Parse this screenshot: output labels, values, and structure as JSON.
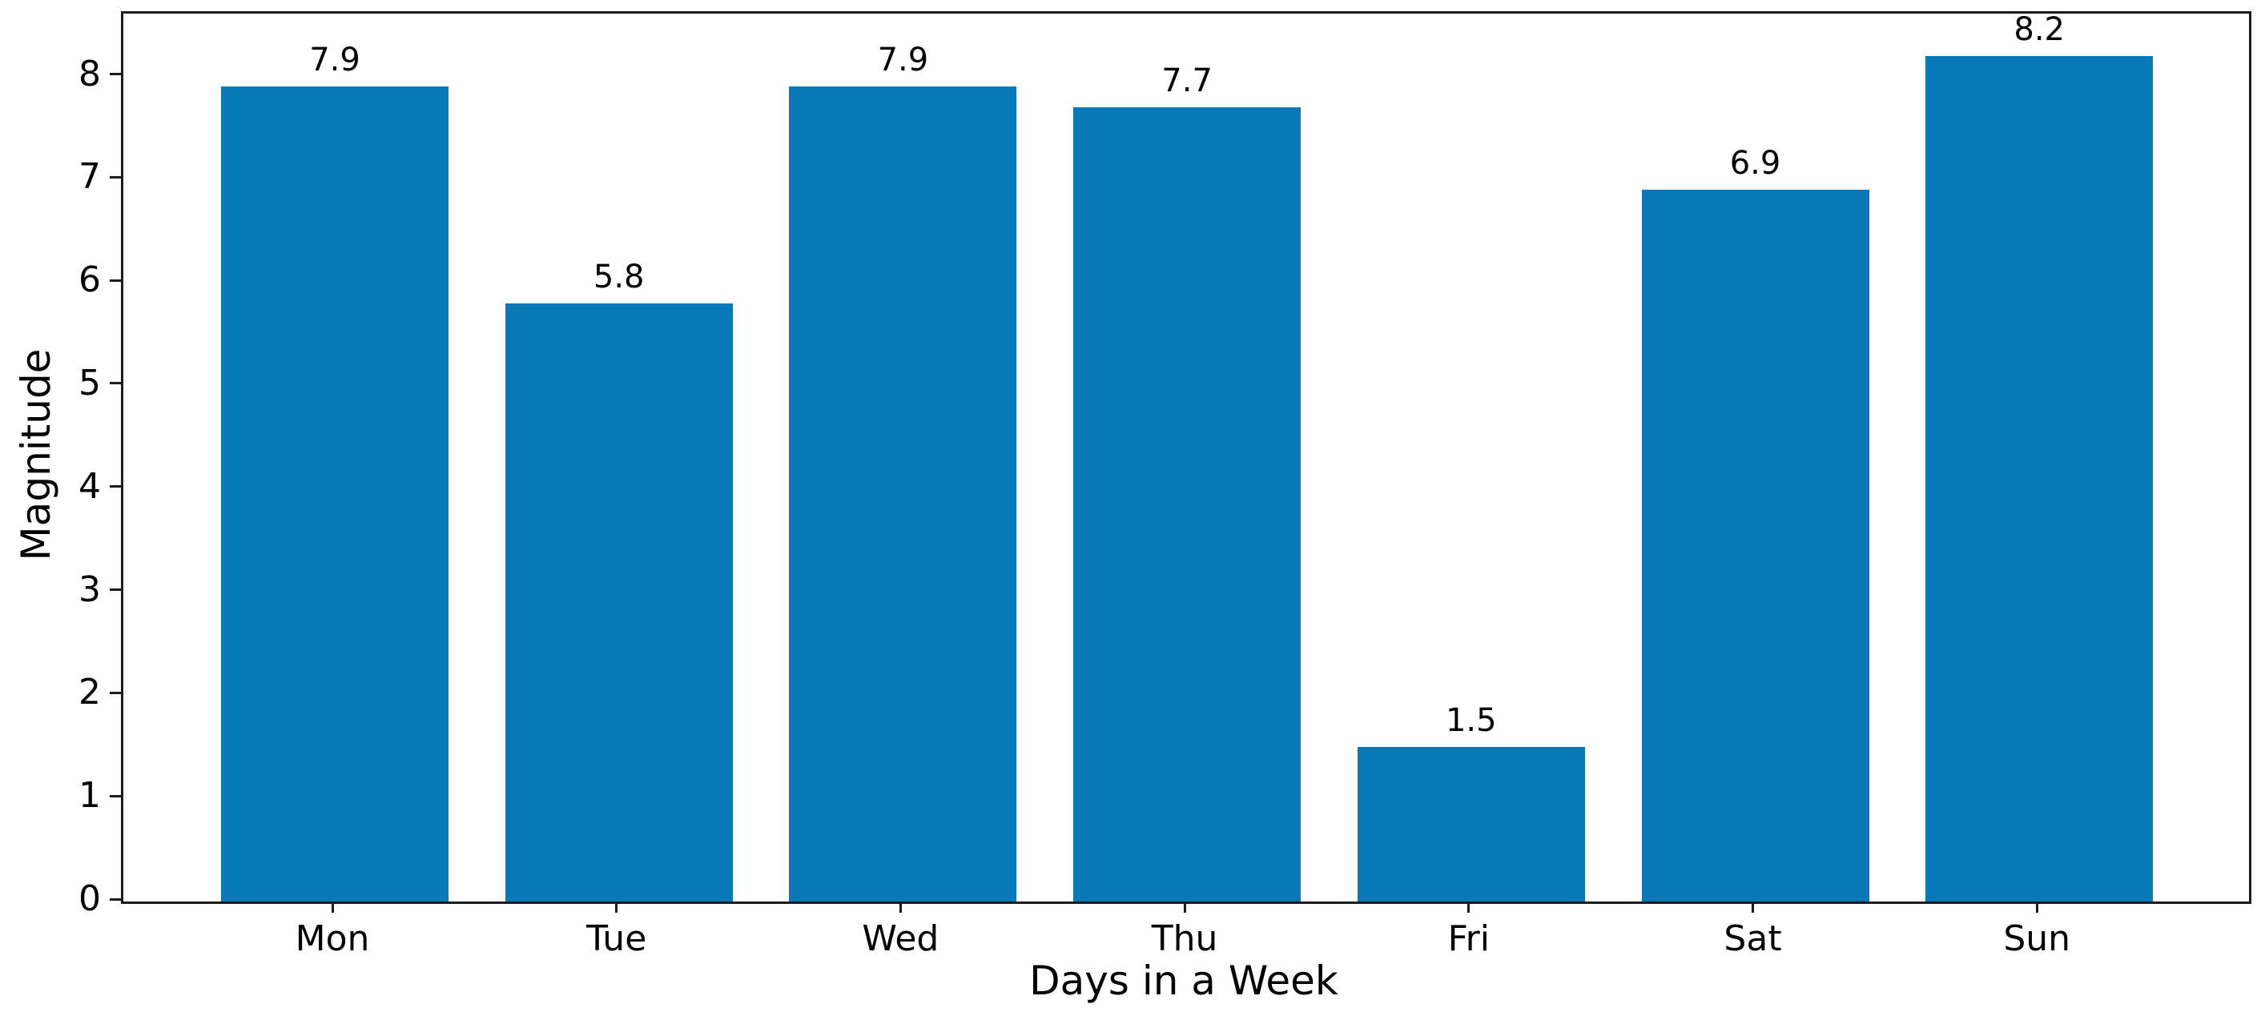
{
  "chart_data": {
    "type": "bar",
    "categories": [
      "Mon",
      "Tue",
      "Wed",
      "Thu",
      "Fri",
      "Sat",
      "Sun"
    ],
    "values": [
      7.9,
      5.8,
      7.9,
      7.7,
      1.5,
      6.9,
      8.2
    ],
    "bar_labels": [
      "7.9",
      "5.8",
      "7.9",
      "7.7",
      "1.5",
      "6.9",
      "8.2"
    ],
    "title": "",
    "xlabel": "Days in a Week",
    "ylabel": "Magnitude",
    "ylim": [
      0,
      8.61
    ],
    "yticks": [
      "0",
      "1",
      "2",
      "3",
      "4",
      "5",
      "6",
      "7",
      "8"
    ],
    "grid": false,
    "legend": null,
    "bar_color": "#0778b8",
    "axis_color": "#1c1c1c",
    "text_color": "#000000"
  }
}
